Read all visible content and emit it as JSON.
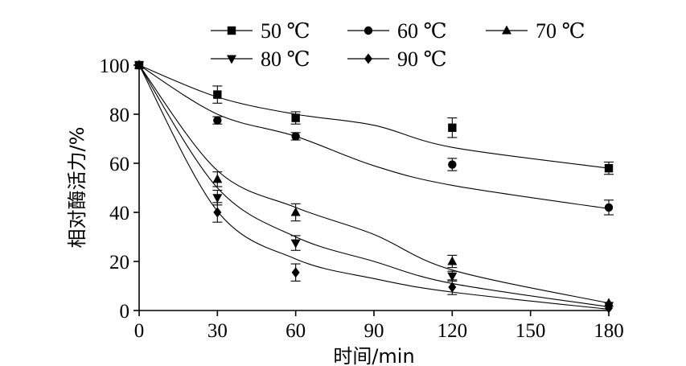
{
  "chart_data": {
    "type": "line",
    "xlabel": "时间/min",
    "ylabel": "相对酶活力/%",
    "x": [
      0,
      30,
      60,
      120,
      180
    ],
    "xlim": [
      0,
      180
    ],
    "ylim": [
      0,
      100
    ],
    "xticks": [
      "0",
      "30",
      "60",
      "90",
      "120",
      "150",
      "180"
    ],
    "yticks": [
      "0",
      "20",
      "40",
      "60",
      "80",
      "100"
    ],
    "grid": false,
    "legend_position": "top",
    "series": [
      {
        "name": "50 ℃",
        "marker": "square",
        "values": [
          100,
          88,
          78.5,
          74.5,
          58
        ],
        "errors": [
          0,
          3.5,
          2.5,
          4,
          2.5
        ],
        "fit": [
          100,
          87,
          80,
          75.5,
          66.5,
          58
        ]
      },
      {
        "name": "60 ℃",
        "marker": "circle",
        "values": [
          100,
          77.5,
          71,
          59.5,
          42
        ],
        "errors": [
          0,
          1.5,
          1.5,
          2.5,
          3
        ],
        "fit": [
          100,
          80,
          71,
          59,
          51,
          41.5
        ]
      },
      {
        "name": "70 ℃",
        "marker": "triangle-up",
        "values": [
          100,
          53.5,
          40,
          20,
          3
        ],
        "errors": [
          0,
          3,
          3.5,
          2.5,
          0
        ],
        "fit": [
          100,
          57,
          42,
          31,
          16.5,
          3
        ]
      },
      {
        "name": "80 ℃",
        "marker": "triangle-down",
        "values": [
          100,
          46,
          27.5,
          14,
          2
        ],
        "errors": [
          0,
          3,
          3,
          2,
          0
        ],
        "fit": [
          100,
          50,
          30,
          20,
          11,
          1.5
        ]
      },
      {
        "name": "90 ℃",
        "marker": "diamond",
        "values": [
          100,
          40,
          15.5,
          9.5,
          1
        ],
        "errors": [
          0,
          4,
          3.5,
          3,
          0
        ],
        "fit": [
          100,
          40.5,
          21,
          13,
          7.5,
          0.5
        ]
      }
    ],
    "fit_x": [
      0,
      30,
      60,
      90,
      120,
      180
    ]
  }
}
